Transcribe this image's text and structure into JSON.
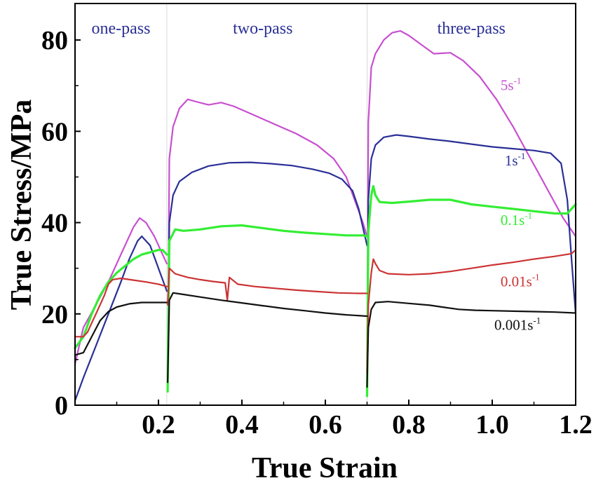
{
  "chart_data": {
    "type": "line",
    "xlabel": "True Strain",
    "ylabel": "True Stress/MPa",
    "xlim": [
      0.0,
      1.2
    ],
    "ylim": [
      0,
      88
    ],
    "x_ticks": [
      "0.2",
      "0.4",
      "0.6",
      "0.8",
      "1.0",
      "1.2"
    ],
    "y_ticks": [
      "0",
      "20",
      "40",
      "60",
      "80"
    ],
    "grid": false,
    "pass_labels": [
      {
        "text": "one-pass",
        "x": 0.11
      },
      {
        "text": "two-pass",
        "x": 0.45
      },
      {
        "text": "three-pass",
        "x": 0.95
      }
    ],
    "pass_boundaries": [
      0.22,
      0.7
    ],
    "series": [
      {
        "name": "5s-1",
        "label_base": "5s",
        "label_sup": "-1",
        "color": "#c84fd0",
        "label_x": 1.02,
        "label_y": 69,
        "segments": [
          [
            [
              0.0,
              9
            ],
            [
              0.02,
              17
            ],
            [
              0.05,
              22
            ],
            [
              0.08,
              27
            ],
            [
              0.11,
              33
            ],
            [
              0.14,
              39
            ],
            [
              0.155,
              41
            ],
            [
              0.17,
              40
            ],
            [
              0.19,
              37
            ],
            [
              0.21,
              33
            ],
            [
              0.22,
              31
            ]
          ],
          [
            [
              0.222,
              4
            ],
            [
              0.226,
              54
            ],
            [
              0.235,
              61
            ],
            [
              0.25,
              65
            ],
            [
              0.27,
              67
            ],
            [
              0.29,
              66.5
            ],
            [
              0.32,
              65.8
            ],
            [
              0.35,
              66.3
            ],
            [
              0.38,
              65.5
            ],
            [
              0.43,
              63.5
            ],
            [
              0.48,
              61.5
            ],
            [
              0.53,
              59.5
            ],
            [
              0.58,
              57
            ],
            [
              0.62,
              54
            ],
            [
              0.65,
              50
            ],
            [
              0.67,
              45
            ],
            [
              0.69,
              40
            ],
            [
              0.7,
              37
            ]
          ],
          [
            [
              0.7,
              4
            ],
            [
              0.703,
              62
            ],
            [
              0.71,
              74
            ],
            [
              0.72,
              77
            ],
            [
              0.74,
              80
            ],
            [
              0.76,
              81.6
            ],
            [
              0.78,
              82
            ],
            [
              0.8,
              81
            ],
            [
              0.83,
              79
            ],
            [
              0.86,
              77
            ],
            [
              0.9,
              77.2
            ],
            [
              0.93,
              75.5
            ],
            [
              0.97,
              72
            ],
            [
              1.01,
              67
            ],
            [
              1.05,
              61
            ],
            [
              1.08,
              56
            ],
            [
              1.11,
              51
            ],
            [
              1.14,
              46
            ],
            [
              1.17,
              41
            ],
            [
              1.2,
              37
            ]
          ]
        ]
      },
      {
        "name": "1s-1",
        "label_base": "1s",
        "label_sup": "-1",
        "color": "#2a2f96",
        "label_x": 1.03,
        "label_y": 52.5,
        "segments": [
          [
            [
              0.0,
              1
            ],
            [
              0.02,
              6
            ],
            [
              0.05,
              13
            ],
            [
              0.08,
              20
            ],
            [
              0.11,
              27
            ],
            [
              0.13,
              32
            ],
            [
              0.15,
              36
            ],
            [
              0.16,
              37
            ],
            [
              0.18,
              35
            ],
            [
              0.2,
              30
            ],
            [
              0.22,
              25
            ]
          ],
          [
            [
              0.222,
              3
            ],
            [
              0.226,
              40
            ],
            [
              0.235,
              46
            ],
            [
              0.25,
              49
            ],
            [
              0.28,
              51
            ],
            [
              0.32,
              52.4
            ],
            [
              0.37,
              53.1
            ],
            [
              0.42,
              53.2
            ],
            [
              0.47,
              52.9
            ],
            [
              0.52,
              52.5
            ],
            [
              0.57,
              51.7
            ],
            [
              0.61,
              50.8
            ],
            [
              0.64,
              49.5
            ],
            [
              0.665,
              47
            ],
            [
              0.68,
              43
            ],
            [
              0.69,
              39
            ],
            [
              0.7,
              35
            ]
          ],
          [
            [
              0.7,
              3
            ],
            [
              0.703,
              45
            ],
            [
              0.71,
              54
            ],
            [
              0.72,
              57
            ],
            [
              0.74,
              58.7
            ],
            [
              0.77,
              59.2
            ],
            [
              0.8,
              58.9
            ],
            [
              0.85,
              58.3
            ],
            [
              0.9,
              57.8
            ],
            [
              0.95,
              57.2
            ],
            [
              1.0,
              56.6
            ],
            [
              1.05,
              56.2
            ],
            [
              1.1,
              55.8
            ],
            [
              1.14,
              55.2
            ],
            [
              1.165,
              53
            ],
            [
              1.18,
              45
            ],
            [
              1.19,
              32
            ],
            [
              1.2,
              20
            ]
          ]
        ]
      },
      {
        "name": "0.1s-1",
        "label_base": "0.1s",
        "label_sup": "-1",
        "color": "#33ee33",
        "label_x": 1.02,
        "label_y": 39.5,
        "segments": [
          [
            [
              0.0,
              12.5
            ],
            [
              0.02,
              15
            ],
            [
              0.04,
              20
            ],
            [
              0.06,
              24
            ],
            [
              0.08,
              27
            ],
            [
              0.1,
              29
            ],
            [
              0.12,
              30.5
            ],
            [
              0.14,
              32
            ],
            [
              0.16,
              33
            ],
            [
              0.18,
              33.5
            ],
            [
              0.2,
              34
            ],
            [
              0.21,
              34
            ],
            [
              0.22,
              33
            ]
          ],
          [
            [
              0.222,
              3
            ],
            [
              0.226,
              36
            ],
            [
              0.24,
              38.5
            ],
            [
              0.26,
              38.2
            ],
            [
              0.3,
              38.5
            ],
            [
              0.35,
              39.2
            ],
            [
              0.4,
              39.4
            ],
            [
              0.45,
              38.8
            ],
            [
              0.5,
              38.2
            ],
            [
              0.55,
              37.8
            ],
            [
              0.6,
              37.5
            ],
            [
              0.65,
              37.2
            ],
            [
              0.69,
              37.2
            ],
            [
              0.7,
              37
            ]
          ],
          [
            [
              0.7,
              2
            ],
            [
              0.703,
              38
            ],
            [
              0.71,
              46
            ],
            [
              0.715,
              48
            ],
            [
              0.72,
              46
            ],
            [
              0.73,
              44.5
            ],
            [
              0.76,
              44.3
            ],
            [
              0.8,
              44.6
            ],
            [
              0.85,
              45
            ],
            [
              0.9,
              45
            ],
            [
              0.95,
              44
            ],
            [
              1.0,
              43.5
            ],
            [
              1.05,
              43
            ],
            [
              1.1,
              42.5
            ],
            [
              1.15,
              42
            ],
            [
              1.18,
              42
            ],
            [
              1.2,
              44
            ]
          ]
        ]
      },
      {
        "name": "0.01s-1",
        "label_base": "0.01s",
        "label_sup": "-1",
        "color": "#cc3333",
        "label_x": 1.02,
        "label_y": 26,
        "segments": [
          [
            [
              0.0,
              15
            ],
            [
              0.02,
              15
            ],
            [
              0.03,
              16
            ],
            [
              0.05,
              20
            ],
            [
              0.07,
              24
            ],
            [
              0.08,
              26.5
            ],
            [
              0.09,
              27.5
            ],
            [
              0.11,
              27.8
            ],
            [
              0.14,
              27.4
            ],
            [
              0.17,
              27
            ],
            [
              0.2,
              26.5
            ],
            [
              0.22,
              26
            ]
          ],
          [
            [
              0.222,
              22
            ],
            [
              0.226,
              30
            ],
            [
              0.24,
              28.8
            ],
            [
              0.27,
              28
            ],
            [
              0.3,
              27.5
            ],
            [
              0.33,
              27.1
            ],
            [
              0.36,
              26.8
            ],
            [
              0.365,
              23
            ],
            [
              0.37,
              28
            ],
            [
              0.39,
              26.5
            ],
            [
              0.43,
              26
            ],
            [
              0.48,
              25.6
            ],
            [
              0.53,
              25.2
            ],
            [
              0.58,
              24.9
            ],
            [
              0.63,
              24.6
            ],
            [
              0.68,
              24.5
            ],
            [
              0.7,
              24.5
            ]
          ],
          [
            [
              0.7,
              7
            ],
            [
              0.703,
              22
            ],
            [
              0.71,
              29
            ],
            [
              0.715,
              32
            ],
            [
              0.72,
              31
            ],
            [
              0.73,
              29.5
            ],
            [
              0.75,
              28.8
            ],
            [
              0.8,
              28.6
            ],
            [
              0.85,
              28.8
            ],
            [
              0.9,
              29.3
            ],
            [
              0.95,
              30
            ],
            [
              1.0,
              30.7
            ],
            [
              1.05,
              31.3
            ],
            [
              1.1,
              32
            ],
            [
              1.15,
              32.6
            ],
            [
              1.19,
              33.2
            ],
            [
              1.2,
              34
            ]
          ]
        ]
      },
      {
        "name": "0.001s-1",
        "label_base": "0.001s",
        "label_sup": "-1",
        "color": "#111111",
        "label_x": 1.005,
        "label_y": 16.5,
        "segments": [
          [
            [
              0.0,
              11
            ],
            [
              0.02,
              11.5
            ],
            [
              0.04,
              15
            ],
            [
              0.06,
              18.5
            ],
            [
              0.08,
              20.5
            ],
            [
              0.1,
              21.5
            ],
            [
              0.13,
              22.2
            ],
            [
              0.16,
              22.5
            ],
            [
              0.19,
              22.5
            ],
            [
              0.22,
              22.5
            ]
          ],
          [
            [
              0.222,
              5
            ],
            [
              0.226,
              23
            ],
            [
              0.235,
              24.6
            ],
            [
              0.25,
              24.4
            ],
            [
              0.3,
              23.7
            ],
            [
              0.35,
              23
            ],
            [
              0.4,
              22.4
            ],
            [
              0.45,
              21.8
            ],
            [
              0.5,
              21.2
            ],
            [
              0.55,
              20.7
            ],
            [
              0.6,
              20.2
            ],
            [
              0.65,
              19.8
            ],
            [
              0.7,
              19.5
            ]
          ],
          [
            [
              0.7,
              4
            ],
            [
              0.703,
              17
            ],
            [
              0.71,
              21
            ],
            [
              0.72,
              22.5
            ],
            [
              0.75,
              22.7
            ],
            [
              0.8,
              22.3
            ],
            [
              0.85,
              21.9
            ],
            [
              0.88,
              21.5
            ],
            [
              0.92,
              21
            ],
            [
              0.96,
              20.8
            ],
            [
              1.0,
              20.7
            ],
            [
              1.05,
              20.6
            ],
            [
              1.1,
              20.5
            ],
            [
              1.15,
              20.4
            ],
            [
              1.2,
              20.2
            ]
          ]
        ]
      }
    ]
  }
}
